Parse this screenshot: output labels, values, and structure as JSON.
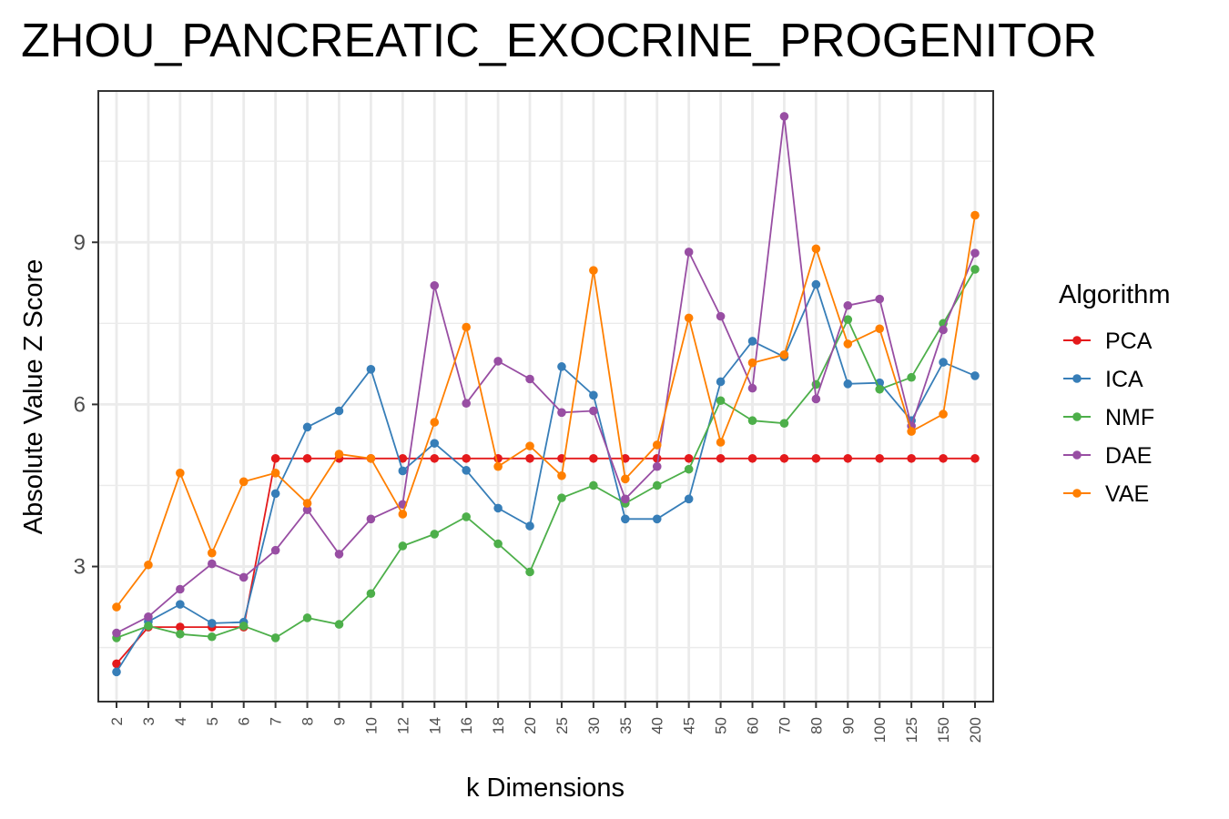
{
  "chart_data": {
    "type": "line",
    "title": "ZHOU_PANCREATIC_EXOCRINE_PROGENITOR",
    "xlabel": "k Dimensions",
    "ylabel": "Absolute Value Z Score",
    "categories": [
      "2",
      "3",
      "4",
      "5",
      "6",
      "7",
      "8",
      "9",
      "10",
      "12",
      "14",
      "16",
      "18",
      "20",
      "25",
      "30",
      "35",
      "40",
      "45",
      "50",
      "60",
      "70",
      "80",
      "90",
      "100",
      "125",
      "150",
      "200"
    ],
    "yticks": [
      3,
      6,
      9
    ],
    "ylim": [
      0.5,
      11.8
    ],
    "grid": true,
    "legend": {
      "title": "Algorithm",
      "placement": "right"
    },
    "series": [
      {
        "name": "PCA",
        "color": "#e41a1c",
        "values": [
          1.2,
          1.88,
          1.88,
          1.88,
          1.88,
          5.0,
          5.0,
          5.0,
          5.0,
          5.0,
          5.0,
          5.0,
          5.0,
          5.0,
          5.0,
          5.0,
          5.0,
          5.0,
          5.0,
          5.0,
          5.0,
          5.0,
          5.0,
          5.0,
          5.0,
          5.0,
          5.0,
          5.0
        ]
      },
      {
        "name": "ICA",
        "color": "#377eb8",
        "values": [
          1.05,
          1.98,
          2.3,
          1.95,
          1.97,
          4.35,
          5.58,
          5.88,
          6.65,
          4.77,
          5.28,
          4.78,
          4.08,
          3.75,
          6.7,
          6.17,
          3.88,
          3.88,
          4.25,
          6.42,
          7.17,
          6.88,
          8.22,
          6.38,
          6.4,
          5.7,
          6.78,
          6.53
        ]
      },
      {
        "name": "NMF",
        "color": "#4daf4a",
        "values": [
          1.68,
          1.9,
          1.75,
          1.7,
          1.9,
          1.68,
          2.05,
          1.93,
          2.5,
          3.38,
          3.6,
          3.92,
          3.42,
          2.9,
          4.27,
          4.5,
          4.17,
          4.5,
          4.8,
          6.07,
          5.7,
          5.65,
          6.37,
          7.57,
          6.28,
          6.5,
          7.5,
          8.5
        ]
      },
      {
        "name": "DAE",
        "color": "#984ea3",
        "values": [
          1.77,
          2.07,
          2.58,
          3.05,
          2.8,
          3.3,
          4.05,
          3.23,
          3.88,
          4.15,
          8.2,
          6.02,
          6.8,
          6.47,
          5.85,
          5.88,
          4.25,
          4.85,
          8.82,
          7.63,
          6.3,
          11.33,
          6.1,
          7.83,
          7.95,
          5.6,
          7.38,
          8.8
        ]
      },
      {
        "name": "VAE",
        "color": "#ff7f00",
        "values": [
          2.25,
          3.03,
          4.73,
          3.25,
          4.57,
          4.73,
          4.17,
          5.08,
          5.0,
          3.97,
          5.67,
          7.43,
          4.85,
          5.23,
          4.68,
          8.48,
          4.62,
          5.25,
          7.6,
          5.3,
          6.77,
          6.92,
          8.88,
          7.12,
          7.4,
          5.5,
          5.82,
          9.5
        ]
      }
    ]
  }
}
